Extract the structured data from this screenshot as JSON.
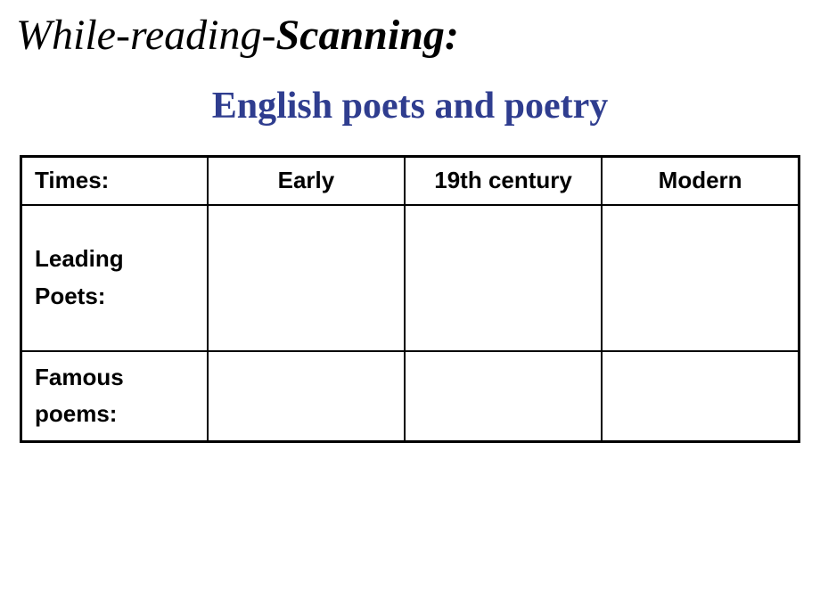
{
  "heading": {
    "part1": "While-reading-",
    "part2": "Scanning:"
  },
  "subtitle": "English poets and poetry",
  "table": {
    "header": {
      "label": "Times:",
      "col1": "Early",
      "col2": "19th century",
      "col3": "Modern"
    },
    "row_poets": {
      "label": "Leading\nPoets:",
      "col1": "",
      "col2": "",
      "col3": ""
    },
    "row_poems": {
      "label": "Famous\npoems:",
      "col1": "",
      "col2": "",
      "col3": ""
    }
  },
  "colors": {
    "subtitle": "#2f3d8f",
    "text": "#000000",
    "background": "#ffffff",
    "border": "#000000"
  },
  "fonts": {
    "heading_family": "cursive",
    "heading_size_pt": 36,
    "subtitle_family": "Times New Roman",
    "subtitle_size_pt": 32,
    "table_family": "Arial",
    "table_size_pt": 20
  }
}
